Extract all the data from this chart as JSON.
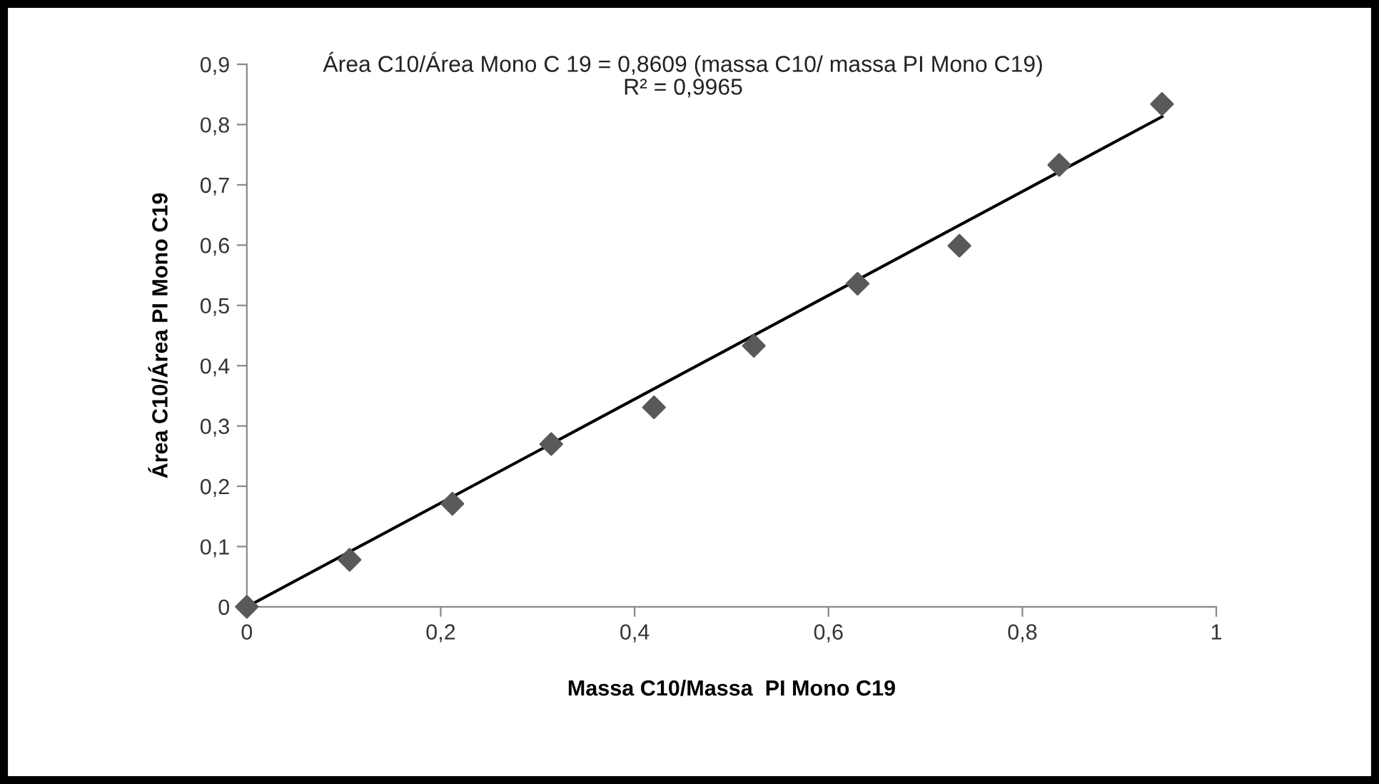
{
  "chart_data": {
    "type": "scatter",
    "xlabel": "Massa C10/Massa  PI Mono C19",
    "ylabel": "Área C10/Área PI Mono C19",
    "xlim": [
      0,
      1
    ],
    "xticks": [
      {
        "value": 0,
        "label": "0"
      },
      {
        "value": 0.2,
        "label": "0,2"
      },
      {
        "value": 0.4,
        "label": "0,4"
      },
      {
        "value": 0.6,
        "label": "0,6"
      },
      {
        "value": 0.8,
        "label": "0,8"
      },
      {
        "value": 1,
        "label": "1"
      }
    ],
    "ylim": [
      0,
      0.9
    ],
    "yticks": [
      {
        "value": 0,
        "label": "0"
      },
      {
        "value": 0.1,
        "label": "0,1"
      },
      {
        "value": 0.2,
        "label": "0,2"
      },
      {
        "value": 0.3,
        "label": "0,3"
      },
      {
        "value": 0.4,
        "label": "0,4"
      },
      {
        "value": 0.5,
        "label": "0,5"
      },
      {
        "value": 0.6,
        "label": "0,6"
      },
      {
        "value": 0.7,
        "label": "0,7"
      },
      {
        "value": 0.8,
        "label": "0,8"
      },
      {
        "value": 0.9,
        "label": "0,9"
      }
    ],
    "grid": false,
    "legend": false,
    "marker": "diamond",
    "annotations": [
      "Área C10/Área Mono C 19 = 0,8609 (massa C10/ massa PI Mono C19)",
      "R² = 0,9965"
    ],
    "series": [
      {
        "color": "#595959",
        "x": [
          0,
          0.106,
          0.212,
          0.314,
          0.42,
          0.523,
          0.63,
          0.735,
          0.838,
          0.944
        ],
        "values": [
          0,
          0.078,
          0.171,
          0.27,
          0.331,
          0.433,
          0.536,
          0.599,
          0.733,
          0.834
        ]
      },
      {
        "type": "line",
        "color": "#000000",
        "marker": "none",
        "line_style": "solid",
        "x": [
          0,
          0.944
        ],
        "values": [
          0,
          0.813
        ]
      }
    ]
  }
}
